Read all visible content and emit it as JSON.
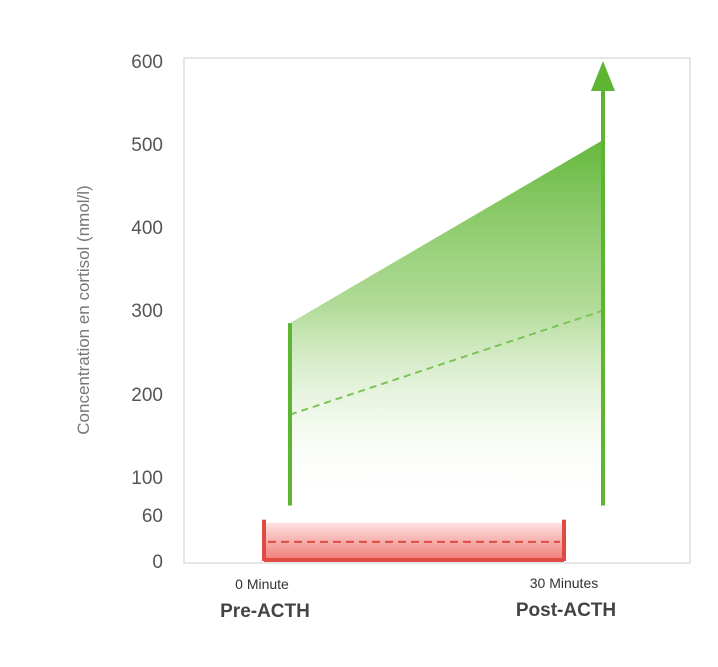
{
  "chart_data": {
    "type": "area",
    "ylabel": "Concentration en cortisol (nmol/l)",
    "y_ticks": [
      0,
      60,
      100,
      200,
      300,
      400,
      500,
      600
    ],
    "ylim": [
      0,
      600
    ],
    "x_points": [
      {
        "sublabel": "0 Minute",
        "label": "Pre-ACTH"
      },
      {
        "sublabel": "30 Minutes",
        "label": "Post-ACTH"
      }
    ],
    "normal_response_band": {
      "upper": [
        285,
        505
      ],
      "mid": [
        175,
        300
      ],
      "pre_line_bottom": 70,
      "post_line_bottom": 70,
      "post_line_arrow_to": 600
    },
    "low_band": {
      "min": 0,
      "max": 50,
      "mid": 25
    },
    "grid": false,
    "colors": {
      "green": "#5db533",
      "green_light": "#e9f5df",
      "red": "#e04a44",
      "red_light": "#fbd7d5",
      "axis_frame": "#cccccc"
    }
  }
}
